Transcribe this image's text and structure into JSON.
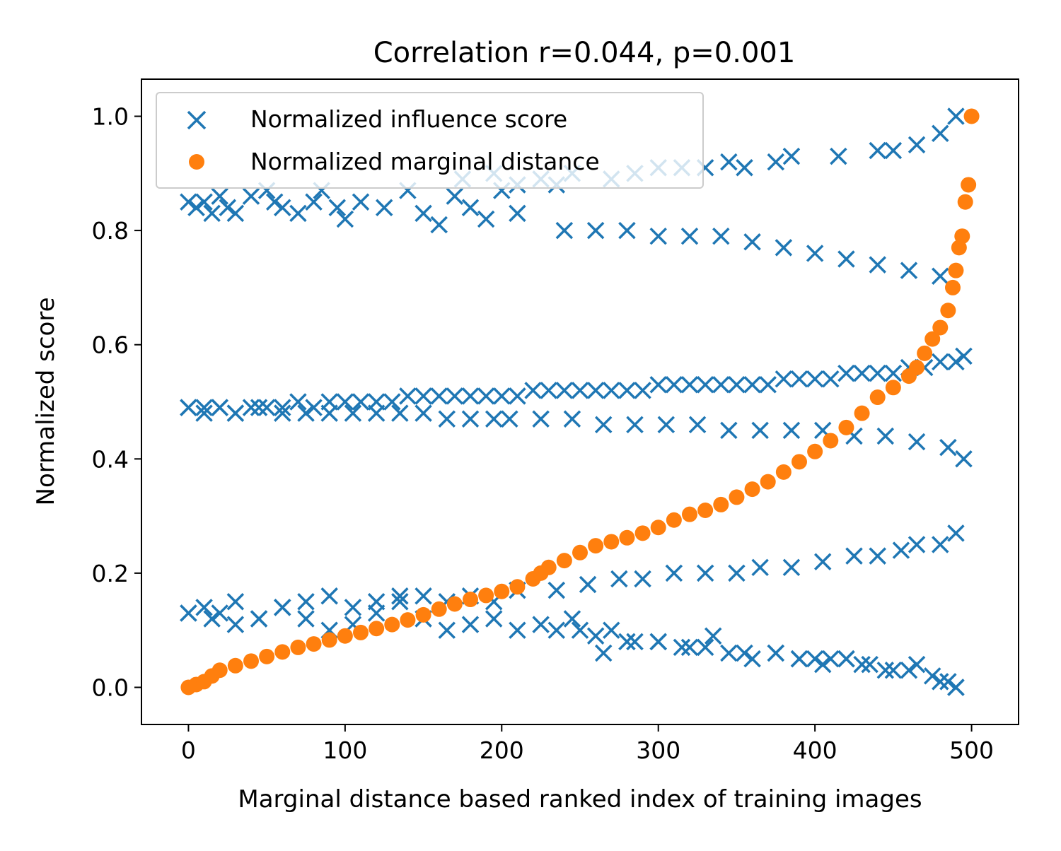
{
  "chart_data": {
    "type": "scatter",
    "title": "Correlation r=0.044, p=0.001",
    "xlabel": "Marginal distance based ranked index of training images",
    "ylabel": "Normalized score",
    "xlim": [
      -30,
      530
    ],
    "ylim": [
      -0.065,
      1.065
    ],
    "xticks": [
      0,
      100,
      200,
      300,
      400,
      500
    ],
    "xtick_labels": [
      "0",
      "100",
      "200",
      "300",
      "400",
      "500"
    ],
    "yticks": [
      0.0,
      0.2,
      0.4,
      0.6,
      0.8,
      1.0
    ],
    "ytick_labels": [
      "0.0",
      "0.2",
      "0.4",
      "0.6",
      "0.8",
      "1.0"
    ],
    "grid": false,
    "legend": {
      "position": "top-left",
      "entries": [
        "Normalized influence score",
        "Normalized marginal distance"
      ]
    },
    "series": [
      {
        "name": "Normalized influence score",
        "marker": "x",
        "color": "#1f77b4",
        "x": [
          0,
          5,
          10,
          15,
          20,
          25,
          30,
          40,
          50,
          55,
          60,
          70,
          80,
          85,
          95,
          100,
          110,
          125,
          140,
          150,
          160,
          170,
          180,
          190,
          200,
          210,
          0,
          10,
          20,
          30,
          40,
          50,
          60,
          70,
          80,
          90,
          100,
          110,
          120,
          130,
          140,
          150,
          160,
          170,
          180,
          190,
          200,
          210,
          220,
          230,
          240,
          250,
          260,
          270,
          280,
          290,
          300,
          310,
          320,
          330,
          340,
          350,
          360,
          370,
          380,
          390,
          400,
          410,
          420,
          430,
          440,
          450,
          460,
          470,
          480,
          490,
          495,
          0,
          10,
          20,
          30,
          45,
          60,
          75,
          90,
          105,
          120,
          135,
          150,
          165,
          180,
          195,
          205,
          225,
          245,
          265,
          285,
          305,
          325,
          345,
          365,
          385,
          405,
          425,
          445,
          465,
          485,
          495,
          0,
          10,
          20,
          30,
          45,
          60,
          75,
          90,
          105,
          120,
          135,
          150,
          165,
          180,
          195,
          210,
          235,
          255,
          275,
          290,
          310,
          330,
          350,
          365,
          385,
          405,
          425,
          440,
          455,
          465,
          480,
          490,
          0,
          15,
          30,
          45,
          60,
          75,
          90,
          105,
          120,
          135,
          150,
          165,
          180,
          195,
          210,
          225,
          235,
          245,
          260,
          270,
          285,
          300,
          315,
          330,
          345,
          360,
          375,
          390,
          405,
          420,
          435,
          450,
          465,
          480,
          490,
          175,
          195,
          210,
          225,
          235,
          245,
          270,
          285,
          300,
          315,
          330,
          345,
          355,
          375,
          385,
          415,
          440,
          450,
          465,
          480,
          490,
          240,
          260,
          280,
          300,
          320,
          340,
          360,
          380,
          400,
          420,
          440,
          460,
          480,
          250,
          265,
          280,
          300,
          320,
          335,
          355,
          375,
          390,
          400,
          410,
          420,
          430,
          445,
          460,
          475,
          485,
          490
        ],
        "y": [
          0.85,
          0.84,
          0.85,
          0.83,
          0.86,
          0.84,
          0.83,
          0.86,
          0.87,
          0.85,
          0.84,
          0.83,
          0.85,
          0.87,
          0.84,
          0.82,
          0.85,
          0.84,
          0.87,
          0.83,
          0.81,
          0.86,
          0.84,
          0.82,
          0.87,
          0.83,
          0.49,
          0.49,
          0.49,
          0.48,
          0.49,
          0.49,
          0.49,
          0.5,
          0.49,
          0.5,
          0.5,
          0.5,
          0.5,
          0.5,
          0.51,
          0.51,
          0.51,
          0.51,
          0.51,
          0.51,
          0.51,
          0.51,
          0.52,
          0.52,
          0.52,
          0.52,
          0.52,
          0.52,
          0.52,
          0.52,
          0.53,
          0.53,
          0.53,
          0.53,
          0.53,
          0.53,
          0.53,
          0.53,
          0.54,
          0.54,
          0.54,
          0.54,
          0.55,
          0.55,
          0.55,
          0.55,
          0.56,
          0.56,
          0.57,
          0.57,
          0.58,
          0.49,
          0.48,
          0.49,
          0.48,
          0.49,
          0.48,
          0.48,
          0.48,
          0.48,
          0.48,
          0.48,
          0.48,
          0.47,
          0.47,
          0.47,
          0.47,
          0.47,
          0.47,
          0.46,
          0.46,
          0.46,
          0.46,
          0.45,
          0.45,
          0.45,
          0.45,
          0.44,
          0.44,
          0.43,
          0.42,
          0.4,
          0.13,
          0.14,
          0.13,
          0.15,
          0.12,
          0.14,
          0.15,
          0.16,
          0.14,
          0.15,
          0.16,
          0.16,
          0.15,
          0.16,
          0.15,
          0.17,
          0.17,
          0.18,
          0.19,
          0.19,
          0.2,
          0.2,
          0.2,
          0.21,
          0.21,
          0.22,
          0.23,
          0.23,
          0.24,
          0.25,
          0.25,
          0.27,
          0.13,
          0.12,
          0.11,
          0.12,
          0.14,
          0.12,
          0.1,
          0.11,
          0.13,
          0.15,
          0.12,
          0.1,
          0.11,
          0.12,
          0.1,
          0.11,
          0.1,
          0.12,
          0.09,
          0.1,
          0.08,
          0.08,
          0.07,
          0.07,
          0.06,
          0.05,
          0.06,
          0.05,
          0.04,
          0.05,
          0.04,
          0.03,
          0.04,
          0.01,
          0.0,
          0.89,
          0.9,
          0.88,
          0.89,
          0.88,
          0.9,
          0.89,
          0.9,
          0.91,
          0.91,
          0.91,
          0.92,
          0.91,
          0.92,
          0.93,
          0.93,
          0.94,
          0.94,
          0.95,
          0.97,
          1.0,
          0.8,
          0.8,
          0.8,
          0.79,
          0.79,
          0.79,
          0.78,
          0.77,
          0.76,
          0.75,
          0.74,
          0.73,
          0.72,
          0.1,
          0.06,
          0.08,
          0.08,
          0.07,
          0.09,
          0.06,
          0.06,
          0.05,
          0.05,
          0.05,
          0.05,
          0.04,
          0.03,
          0.03,
          0.02,
          0.01,
          0.0
        ]
      },
      {
        "name": "Normalized marginal distance",
        "marker": "o",
        "color": "#ff7f0e",
        "x": [
          0,
          5,
          10,
          15,
          20,
          30,
          40,
          50,
          60,
          70,
          80,
          90,
          100,
          110,
          120,
          130,
          140,
          150,
          160,
          170,
          180,
          190,
          200,
          210,
          220,
          225,
          230,
          240,
          250,
          260,
          270,
          280,
          290,
          300,
          310,
          320,
          330,
          340,
          350,
          360,
          370,
          380,
          390,
          400,
          410,
          420,
          430,
          440,
          450,
          460,
          465,
          470,
          475,
          480,
          485,
          488,
          490,
          492,
          494,
          496,
          498,
          500
        ],
        "y": [
          0.0,
          0.005,
          0.01,
          0.02,
          0.03,
          0.038,
          0.046,
          0.054,
          0.062,
          0.07,
          0.076,
          0.083,
          0.09,
          0.096,
          0.103,
          0.11,
          0.118,
          0.127,
          0.137,
          0.146,
          0.154,
          0.161,
          0.168,
          0.176,
          0.19,
          0.2,
          0.21,
          0.222,
          0.236,
          0.248,
          0.255,
          0.262,
          0.27,
          0.28,
          0.293,
          0.303,
          0.31,
          0.32,
          0.333,
          0.347,
          0.36,
          0.377,
          0.395,
          0.413,
          0.432,
          0.455,
          0.48,
          0.508,
          0.525,
          0.545,
          0.56,
          0.585,
          0.61,
          0.63,
          0.66,
          0.7,
          0.73,
          0.77,
          0.79,
          0.85,
          0.88,
          1.0
        ]
      }
    ]
  }
}
